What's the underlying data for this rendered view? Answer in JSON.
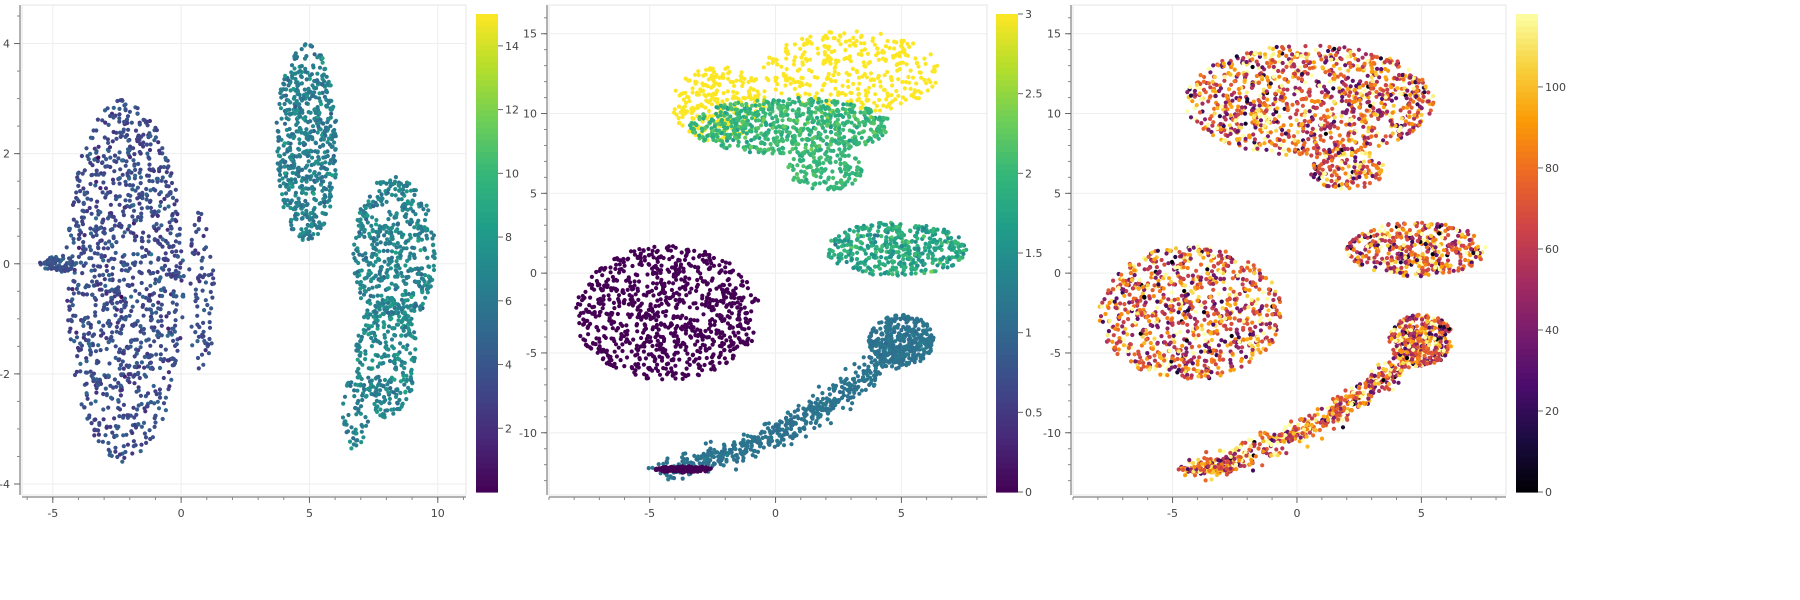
{
  "chart_data": [
    {
      "type": "scatter",
      "title": "",
      "xlabel": "",
      "ylabel": "",
      "xlim": [
        -6.2,
        11.1
      ],
      "ylim": [
        -4.2,
        4.7
      ],
      "x_ticks": [
        -5,
        0,
        5,
        10
      ],
      "x_tick_labels": [
        "-5",
        "0",
        "5",
        "10"
      ],
      "y_ticks": [
        -4,
        -2,
        0,
        2,
        4
      ],
      "y_tick_labels": [
        "-4",
        "-2",
        "0",
        "2",
        "4"
      ],
      "grid": true,
      "colormap": "viridis",
      "color_range": [
        0,
        15
      ],
      "colorbar_ticks": [
        2,
        4,
        6,
        8,
        10,
        12,
        14
      ],
      "colorbar_tick_labels": [
        "2",
        "4",
        "6",
        "8",
        "10",
        "12",
        "14"
      ],
      "clusters": [
        {
          "shape": "ellipse",
          "center": [
            -2.2,
            -0.3
          ],
          "spread": [
            2.3,
            3.3
          ],
          "value": 3.5,
          "value_spread": 0.8,
          "count": 1100
        },
        {
          "shape": "ellipse",
          "center": [
            -4.8,
            0.0
          ],
          "spread": [
            0.7,
            0.15
          ],
          "value": 4.0,
          "value_spread": 0.6,
          "count": 70
        },
        {
          "shape": "ellipse",
          "center": [
            0.8,
            -0.5
          ],
          "spread": [
            0.5,
            1.5
          ],
          "value": 3.5,
          "value_spread": 0.6,
          "count": 80
        },
        {
          "shape": "ellipse",
          "center": [
            4.9,
            2.2
          ],
          "spread": [
            1.2,
            1.8
          ],
          "value": 6.5,
          "value_spread": 0.8,
          "count": 600
        },
        {
          "shape": "ellipse",
          "center": [
            8.3,
            0.2
          ],
          "spread": [
            1.6,
            1.4
          ],
          "value": 6.8,
          "value_spread": 0.8,
          "count": 500
        },
        {
          "shape": "ellipse",
          "center": [
            8.0,
            -1.7
          ],
          "spread": [
            1.2,
            1.1
          ],
          "value": 7.0,
          "value_spread": 0.8,
          "count": 300
        },
        {
          "shape": "ellipse",
          "center": [
            6.8,
            -2.7
          ],
          "spread": [
            0.5,
            0.7
          ],
          "value": 6.5,
          "value_spread": 0.8,
          "count": 60
        }
      ]
    },
    {
      "type": "scatter",
      "title": "",
      "xlabel": "",
      "ylabel": "",
      "xlim": [
        -9.0,
        8.4
      ],
      "ylim": [
        -13.9,
        16.8
      ],
      "x_ticks": [
        -5,
        0,
        5
      ],
      "x_tick_labels": [
        "-5",
        "0",
        "5"
      ],
      "y_ticks": [
        -10,
        -5,
        0,
        5,
        10,
        15
      ],
      "y_tick_labels": [
        "-10",
        "-5",
        "0",
        "5",
        "10",
        "15"
      ],
      "grid": true,
      "colormap": "viridis",
      "color_range": [
        0,
        3
      ],
      "colorbar_ticks": [
        0,
        0.5,
        1,
        1.5,
        2,
        2.5,
        3
      ],
      "colorbar_tick_labels": [
        "0",
        "0.5",
        "1",
        "1.5",
        "2",
        "2.5",
        "3"
      ],
      "clusters": [
        {
          "shape": "ellipse",
          "center": [
            -4.3,
            -2.5
          ],
          "spread": [
            3.7,
            4.2
          ],
          "value": 0,
          "value_spread": 0,
          "count": 900
        },
        {
          "shape": "ellipse",
          "center": [
            -2.2,
            10.6
          ],
          "spread": [
            1.9,
            2.4
          ],
          "value": 3,
          "value_spread": 0,
          "count": 250
        },
        {
          "shape": "ellipse",
          "center": [
            3.0,
            12.6
          ],
          "spread": [
            3.5,
            2.6
          ],
          "value": 3,
          "value_spread": 0,
          "count": 350
        },
        {
          "shape": "ellipse",
          "center": [
            0.6,
            9.2
          ],
          "spread": [
            4.0,
            1.8
          ],
          "value": 2,
          "value_spread": 0.15,
          "count": 700
        },
        {
          "shape": "ellipse",
          "center": [
            2.0,
            6.5
          ],
          "spread": [
            1.5,
            1.3
          ],
          "value": 2,
          "value_spread": 0.1,
          "count": 150
        },
        {
          "shape": "ellipse",
          "center": [
            4.8,
            1.5
          ],
          "spread": [
            2.8,
            1.7
          ],
          "value": 1.8,
          "value_spread": 0.2,
          "count": 450
        },
        {
          "shape": "ellipse",
          "center": [
            5.0,
            -4.2
          ],
          "spread": [
            1.3,
            1.6
          ],
          "value": 1.15,
          "value_spread": 0.05,
          "count": 350
        },
        {
          "shape": "arc",
          "from": [
            -4.3,
            -12.4
          ],
          "via": [
            1.0,
            -10.5
          ],
          "to": [
            5.0,
            -4.5
          ],
          "width": 0.35,
          "value": 1.15,
          "value_spread": 0.05,
          "count": 550
        },
        {
          "shape": "ellipse",
          "center": [
            -3.6,
            -12.3
          ],
          "spread": [
            1.2,
            0.2
          ],
          "value": 0,
          "value_spread": 0,
          "count": 120
        }
      ]
    },
    {
      "type": "scatter",
      "title": "",
      "xlabel": "",
      "ylabel": "",
      "xlim": [
        -9.0,
        8.4
      ],
      "ylim": [
        -13.9,
        16.8
      ],
      "x_ticks": [
        -5,
        0,
        5
      ],
      "x_tick_labels": [
        "-5",
        "0",
        "5"
      ],
      "y_ticks": [
        -10,
        -5,
        0,
        5,
        10,
        15
      ],
      "y_tick_labels": [
        "-10",
        "-5",
        "0",
        "5",
        "10",
        "15"
      ],
      "grid": true,
      "colormap": "inferno",
      "color_range": [
        0,
        118
      ],
      "colorbar_ticks": [
        0,
        20,
        40,
        60,
        80,
        100
      ],
      "colorbar_tick_labels": [
        "0",
        "20",
        "40",
        "60",
        "80",
        "100"
      ],
      "clusters": [
        {
          "shape": "ellipse",
          "center": [
            -4.3,
            -2.5
          ],
          "spread": [
            3.7,
            4.2
          ],
          "value": 75,
          "value_spread": 30,
          "count": 900
        },
        {
          "shape": "ellipse",
          "center": [
            0.5,
            10.8
          ],
          "spread": [
            5.0,
            3.5
          ],
          "value": 75,
          "value_spread": 30,
          "count": 1100
        },
        {
          "shape": "ellipse",
          "center": [
            2.0,
            6.5
          ],
          "spread": [
            1.5,
            1.3
          ],
          "value": 75,
          "value_spread": 30,
          "count": 150
        },
        {
          "shape": "ellipse",
          "center": [
            4.8,
            1.5
          ],
          "spread": [
            2.8,
            1.7
          ],
          "value": 75,
          "value_spread": 30,
          "count": 450
        },
        {
          "shape": "ellipse",
          "center": [
            5.0,
            -4.2
          ],
          "spread": [
            1.3,
            1.6
          ],
          "value": 75,
          "value_spread": 30,
          "count": 350
        },
        {
          "shape": "arc",
          "from": [
            -4.3,
            -12.4
          ],
          "via": [
            1.0,
            -10.5
          ],
          "to": [
            5.0,
            -4.5
          ],
          "width": 0.35,
          "value": 75,
          "value_spread": 30,
          "count": 550
        },
        {
          "shape": "ellipse",
          "center": [
            -3.6,
            -12.3
          ],
          "spread": [
            1.2,
            0.2
          ],
          "value": 80,
          "value_spread": 25,
          "count": 120
        }
      ]
    }
  ]
}
